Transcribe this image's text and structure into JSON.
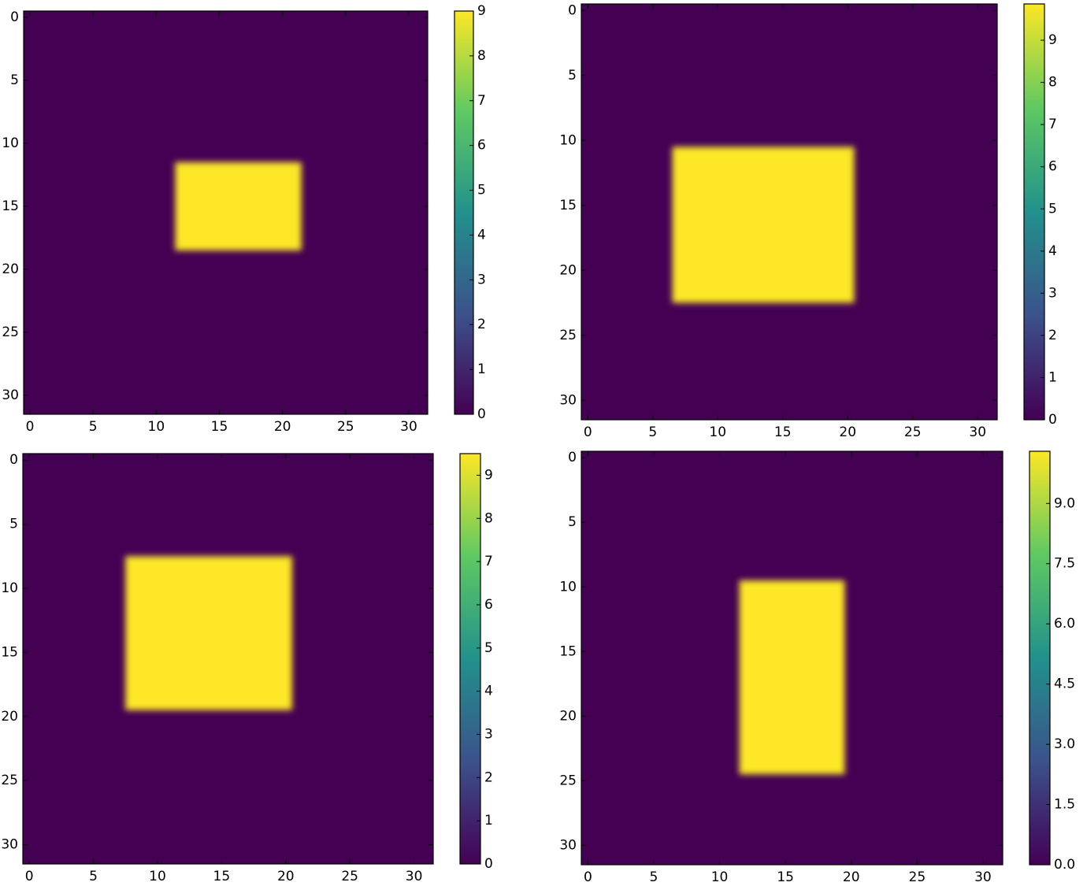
{
  "chart_data": [
    {
      "type": "heatmap",
      "colormap": "viridis",
      "xlim": [
        -0.5,
        31.5
      ],
      "ylim": [
        31.5,
        -0.5
      ],
      "xticks": [
        0,
        5,
        10,
        15,
        20,
        25,
        30
      ],
      "yticks": [
        0,
        5,
        10,
        15,
        20,
        25,
        30
      ],
      "clim": [
        0,
        9
      ],
      "cticks": [
        0,
        1,
        2,
        3,
        4,
        5,
        6,
        7,
        8,
        9
      ],
      "background": 0,
      "rects": [
        {
          "x": [
            11.5,
            21.5
          ],
          "y": [
            11.5,
            18.5
          ],
          "value": 9
        }
      ]
    },
    {
      "type": "heatmap",
      "colormap": "viridis",
      "xlim": [
        -0.5,
        31.5
      ],
      "ylim": [
        31.5,
        -0.5
      ],
      "xticks": [
        0,
        5,
        10,
        15,
        20,
        25,
        30
      ],
      "yticks": [
        0,
        5,
        10,
        15,
        20,
        25,
        30
      ],
      "clim": [
        0,
        9.86
      ],
      "cticks": [
        0,
        1,
        2,
        3,
        4,
        5,
        6,
        7,
        8,
        9
      ],
      "background": 0,
      "rects": [
        {
          "x": [
            6.5,
            20.5
          ],
          "y": [
            10.5,
            22.5
          ],
          "value": 9.86
        }
      ]
    },
    {
      "type": "heatmap",
      "colormap": "viridis",
      "xlim": [
        -0.5,
        31.5
      ],
      "ylim": [
        31.5,
        -0.5
      ],
      "xticks": [
        0,
        5,
        10,
        15,
        20,
        25,
        30
      ],
      "yticks": [
        0,
        5,
        10,
        15,
        20,
        25,
        30
      ],
      "clim": [
        0,
        9.5
      ],
      "cticks": [
        0,
        1,
        2,
        3,
        4,
        5,
        6,
        7,
        8,
        9
      ],
      "background": 0,
      "rects": [
        {
          "x": [
            7.5,
            20.5
          ],
          "y": [
            7.5,
            19.5
          ],
          "value": 9.5
        }
      ]
    },
    {
      "type": "heatmap",
      "colormap": "viridis",
      "xlim": [
        -0.5,
        31.5
      ],
      "ylim": [
        31.5,
        -0.5
      ],
      "xticks": [
        0,
        5,
        10,
        15,
        20,
        25,
        30
      ],
      "yticks": [
        0,
        5,
        10,
        15,
        20,
        25,
        30
      ],
      "clim": [
        0,
        10.3
      ],
      "cticks": [
        {
          "value": 0,
          "label": "0.0"
        },
        {
          "value": 1.5,
          "label": "1.5"
        },
        {
          "value": 3,
          "label": "3.0"
        },
        {
          "value": 4.5,
          "label": "4.5"
        },
        {
          "value": 6,
          "label": "6.0"
        },
        {
          "value": 7.5,
          "label": "7.5"
        },
        {
          "value": 9,
          "label": "9.0"
        }
      ],
      "background": 0,
      "rects": [
        {
          "x": [
            11.5,
            19.5
          ],
          "y": [
            9.5,
            24.5
          ],
          "value": 10.3
        }
      ]
    }
  ]
}
